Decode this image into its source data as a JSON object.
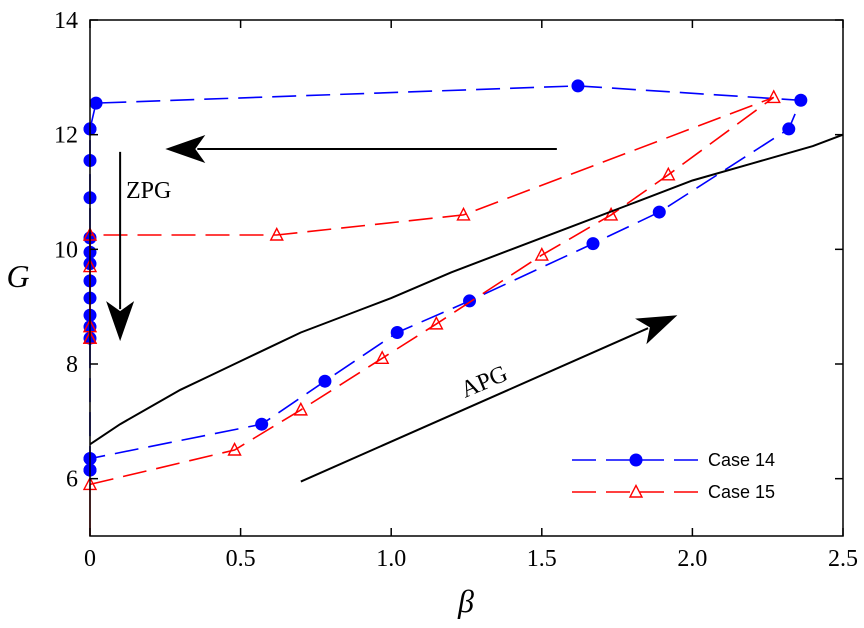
{
  "chart_data": {
    "type": "line",
    "xlabel": "β",
    "ylabel": "G",
    "xlim": [
      0,
      2.5
    ],
    "ylim": [
      5,
      14
    ],
    "xticks": [
      "0",
      "0.5",
      "1.0",
      "1.5",
      "2.0",
      "2.5"
    ],
    "yticks": [
      "6",
      "8",
      "10",
      "12",
      "14"
    ],
    "x_tick_values": [
      0,
      0.5,
      1.0,
      1.5,
      2.0,
      2.5
    ],
    "y_tick_values": [
      6,
      8,
      10,
      12,
      14
    ],
    "grid": false,
    "legend_position": "bottom-right",
    "series": [
      {
        "name": "Case 14",
        "color": "#0000ff",
        "marker": "filled-circle",
        "line": "dashed",
        "x": [
          0.0,
          0.0,
          0.0,
          0.0,
          0.0,
          0.0,
          0.0,
          0.0,
          0.0,
          0.0,
          0.0,
          0.0,
          0.0,
          0.0,
          0.02,
          1.62,
          2.36,
          2.32,
          1.89,
          1.67,
          1.26,
          1.02,
          0.78,
          0.57,
          0.0,
          0.0
        ],
        "y": [
          6.15,
          6.35,
          8.45,
          8.65,
          8.85,
          9.15,
          9.45,
          9.75,
          9.95,
          10.2,
          10.9,
          11.55,
          12.1,
          12.1,
          12.55,
          12.85,
          12.6,
          12.1,
          10.65,
          10.1,
          9.1,
          8.55,
          7.7,
          6.95,
          6.35,
          6.15
        ]
      },
      {
        "name": "Case 15",
        "color": "#ff0000",
        "marker": "open-triangle",
        "line": "dashed",
        "x": [
          0.0,
          0.48,
          0.7,
          0.97,
          1.15,
          1.5,
          1.73,
          1.92,
          2.27,
          1.24,
          0.62,
          0.0,
          0.0,
          0.0,
          0.0,
          0.0
        ],
        "y": [
          5.9,
          6.5,
          7.2,
          8.1,
          8.7,
          9.9,
          10.6,
          11.3,
          12.65,
          10.6,
          10.25,
          10.25,
          9.7,
          8.65,
          8.45,
          8.45
        ]
      },
      {
        "name": "",
        "color": "#000000",
        "marker": "none",
        "line": "solid",
        "x": [
          0.0,
          0.1,
          0.2,
          0.3,
          0.4,
          0.5,
          0.6,
          0.7,
          0.8,
          0.9,
          1.0,
          1.2,
          1.4,
          1.6,
          1.8,
          2.0,
          2.2,
          2.4,
          2.5
        ],
        "y": [
          6.6,
          6.95,
          7.25,
          7.55,
          7.8,
          8.05,
          8.3,
          8.55,
          8.75,
          8.95,
          9.15,
          9.6,
          10.0,
          10.4,
          10.8,
          11.2,
          11.5,
          11.8,
          12.0
        ]
      }
    ],
    "red_segment": {
      "x": [
        0.0,
        0.0
      ],
      "y": [
        5.0,
        5.9
      ]
    },
    "annotations": [
      {
        "text": "ZPG",
        "x": 0.06,
        "y": 11.2
      },
      {
        "text": "APG",
        "x": 0.6,
        "y": 6.5
      }
    ],
    "arrows": [
      {
        "from": [
          1.55,
          11.75
        ],
        "to": [
          0.25,
          11.75
        ]
      },
      {
        "from": [
          0.1,
          11.7
        ],
        "to": [
          0.1,
          8.4
        ]
      },
      {
        "from": [
          0.7,
          5.95
        ],
        "to": [
          1.95,
          8.85
        ]
      }
    ]
  }
}
